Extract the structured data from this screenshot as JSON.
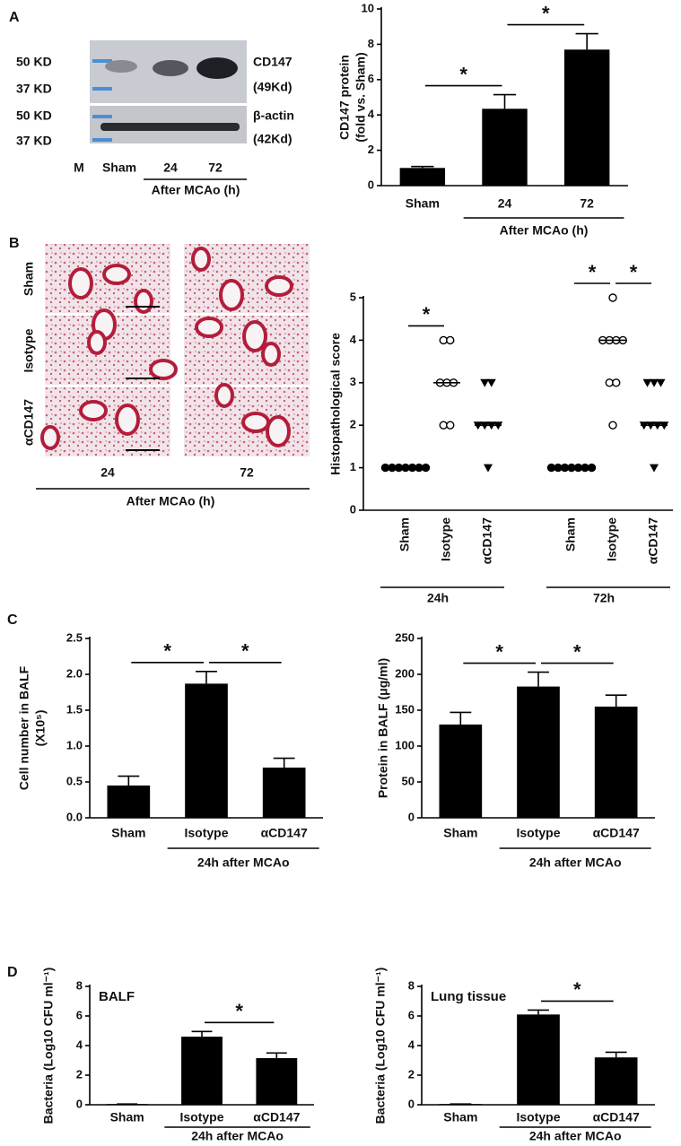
{
  "panel_labels": [
    "A",
    "B",
    "C",
    "D"
  ],
  "blot": {
    "markers": [
      "50 KD",
      "37 KD",
      "50 KD",
      "37 KD"
    ],
    "proteins": [
      {
        "name": "CD147",
        "size": "(49Kd)"
      },
      {
        "name": "β-actin",
        "size": "(42Kd)"
      }
    ],
    "lanes": [
      "M",
      "Sham",
      "24",
      "72"
    ],
    "group": "After MCAo (h)"
  },
  "histology": {
    "rows": [
      "Sham",
      "Isotype",
      "αCD147"
    ],
    "columns": [
      "24",
      "72"
    ],
    "group": "After MCAo (h)"
  },
  "chart_data": [
    {
      "type": "bar",
      "ylabel": [
        "CD147 protein",
        "(fold vs. Sham)"
      ],
      "categories": [
        "Sham",
        "24",
        "72"
      ],
      "group": {
        "label": "After MCAo (h)",
        "categories": [
          "24",
          "72"
        ]
      },
      "values": [
        1.0,
        4.35,
        7.7
      ],
      "errors": [
        0.08,
        0.8,
        0.9
      ],
      "color": "#000000",
      "ylim": [
        0,
        10
      ],
      "yticks": [
        0,
        2,
        4,
        6,
        8,
        10
      ],
      "significance": [
        {
          "label": "*",
          "between": [
            "Sham",
            "24"
          ]
        },
        {
          "label": "*",
          "between": [
            "24",
            "72"
          ]
        }
      ]
    },
    {
      "type": "dot",
      "ylabel": "Histopathological score",
      "ylim": [
        0,
        5
      ],
      "yticks": [
        0,
        1,
        2,
        3,
        4,
        5
      ],
      "markers": [
        "filled-circle",
        "open-circle",
        "filled-triangle"
      ],
      "groups": [
        {
          "label": "24h",
          "categories": [
            "Sham",
            "Isotype",
            "αCD147"
          ],
          "points": [
            [
              1,
              1,
              1,
              1,
              1,
              1,
              1
            ],
            [
              4,
              4,
              3,
              3,
              3,
              2,
              2
            ],
            [
              3,
              3,
              2,
              2,
              2,
              2,
              1
            ]
          ],
          "medians": [
            1,
            3,
            2
          ],
          "significance": [
            {
              "label": "*",
              "between": [
                "Sham",
                "Isotype"
              ]
            }
          ]
        },
        {
          "label": "72h",
          "categories": [
            "Sham",
            "Isotype",
            "αCD147"
          ],
          "points": [
            [
              1,
              1,
              1,
              1,
              1,
              1,
              1
            ],
            [
              5,
              4,
              4,
              4,
              4,
              3,
              3,
              2
            ],
            [
              3,
              3,
              3,
              2,
              2,
              2,
              2,
              1
            ]
          ],
          "medians": [
            1,
            4,
            2
          ],
          "significance": [
            {
              "label": "*",
              "between": [
                "Sham",
                "Isotype"
              ]
            },
            {
              "label": "*",
              "between": [
                "Isotype",
                "αCD147"
              ]
            }
          ]
        }
      ]
    },
    {
      "type": "bar",
      "ylabel": [
        "Cell number in BALF",
        "(X10⁵)"
      ],
      "categories": [
        "Sham",
        "Isotype",
        "αCD147"
      ],
      "group": {
        "label": "24h after MCAo",
        "categories": [
          "Isotype",
          "αCD147"
        ]
      },
      "values": [
        0.45,
        1.87,
        0.7
      ],
      "errors": [
        0.13,
        0.17,
        0.13
      ],
      "color": "#000000",
      "ylim": [
        0,
        2.5
      ],
      "yticks": [
        {
          "value": 0,
          "label": "0.0"
        },
        0.5,
        {
          "value": 1,
          "label": "1.0"
        },
        1.5,
        {
          "value": 2,
          "label": "2.0"
        },
        2.5
      ],
      "significance": [
        {
          "label": "*",
          "between": [
            "Sham",
            "Isotype"
          ]
        },
        {
          "label": "*",
          "between": [
            "Isotype",
            "αCD147"
          ]
        }
      ]
    },
    {
      "type": "bar",
      "ylabel": "Protein in BALF (μg/ml)",
      "categories": [
        "Sham",
        "Isotype",
        "αCD147"
      ],
      "group": {
        "label": "24h after MCAo",
        "categories": [
          "Isotype",
          "αCD147"
        ]
      },
      "values": [
        130,
        183,
        155
      ],
      "errors": [
        17,
        20,
        16
      ],
      "color": "#000000",
      "ylim": [
        0,
        250
      ],
      "yticks": [
        0,
        50,
        100,
        150,
        200,
        250
      ],
      "significance": [
        {
          "label": "*",
          "between": [
            "Sham",
            "Isotype"
          ]
        },
        {
          "label": "*",
          "between": [
            "Isotype",
            "αCD147"
          ]
        }
      ]
    },
    {
      "type": "bar",
      "subtitle": "BALF",
      "ylabel": "Bacteria (Log10 CFU ml⁻¹)",
      "categories": [
        "Sham",
        "Isotype",
        "αCD147"
      ],
      "group": {
        "label": "24h after MCAo",
        "categories": [
          "Isotype",
          "αCD147"
        ]
      },
      "values": [
        0.05,
        4.6,
        3.15
      ],
      "errors": [
        0,
        0.35,
        0.35
      ],
      "color": "#000000",
      "ylim": [
        0,
        8
      ],
      "yticks": [
        0,
        2,
        4,
        6,
        8
      ],
      "significance": [
        {
          "label": "*",
          "between": [
            "Isotype",
            "αCD147"
          ]
        }
      ]
    },
    {
      "type": "bar",
      "subtitle": "Lung tissue",
      "ylabel": "Bacteria (Log10 CFU ml⁻¹)",
      "categories": [
        "Sham",
        "Isotype",
        "αCD147"
      ],
      "group": {
        "label": "24h after MCAo",
        "categories": [
          "Isotype",
          "αCD147"
        ]
      },
      "values": [
        0.05,
        6.1,
        3.2
      ],
      "errors": [
        0,
        0.3,
        0.35
      ],
      "color": "#000000",
      "ylim": [
        0,
        8
      ],
      "yticks": [
        0,
        2,
        4,
        6,
        8
      ],
      "significance": [
        {
          "label": "*",
          "between": [
            "Isotype",
            "αCD147"
          ]
        }
      ]
    }
  ]
}
